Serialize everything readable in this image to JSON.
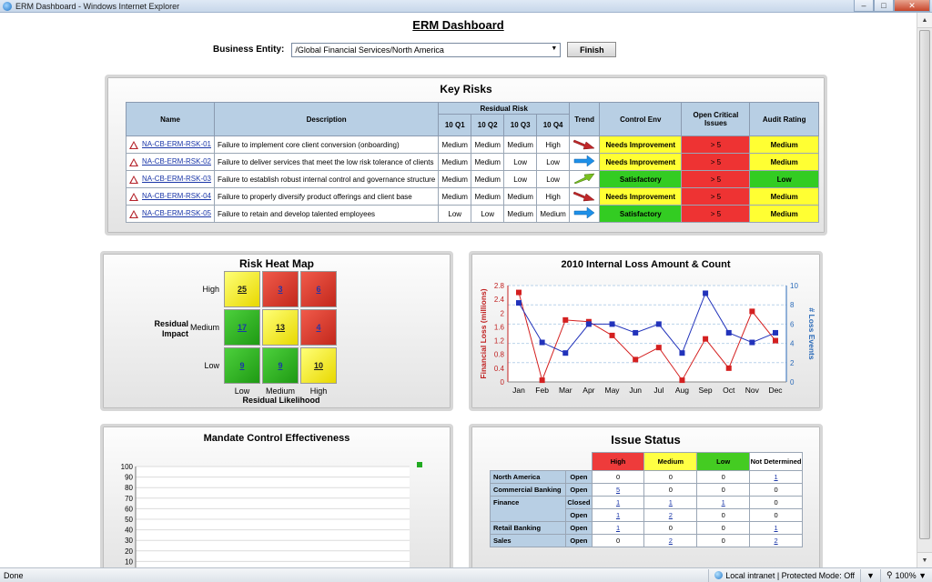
{
  "window": {
    "title": "ERM Dashboard - Windows Internet Explorer"
  },
  "header": {
    "title": "ERM Dashboard",
    "entity_label": "Business Entity:",
    "entity_value": "/Global Financial Services/North America",
    "finish_label": "Finish"
  },
  "key_risks": {
    "title": "Key Risks",
    "columns": {
      "name": "Name",
      "description": "Description",
      "residual_risk": "Residual Risk",
      "q1": "10 Q1",
      "q2": "10 Q2",
      "q3": "10 Q3",
      "q4": "10 Q4",
      "trend": "Trend",
      "control_env": "Control Env",
      "open_issues": "Open Critical Issues",
      "audit": "Audit Rating"
    },
    "rows": [
      {
        "id": "NA-CB-ERM-RSK-01",
        "desc": "Failure to implement core client conversion (onboarding)",
        "q1": "Medium",
        "q2": "Medium",
        "q3": "Medium",
        "q4": "High",
        "trend": "down-red",
        "control": "Needs Improvement",
        "control_color": "yellow",
        "issues": "> 5",
        "audit": "Medium",
        "audit_color": "yellow"
      },
      {
        "id": "NA-CB-ERM-RSK-02",
        "desc": "Failure to deliver services that meet the low risk tolerance of clients",
        "q1": "Medium",
        "q2": "Medium",
        "q3": "Low",
        "q4": "Low",
        "trend": "right-blue",
        "control": "Needs Improvement",
        "control_color": "yellow",
        "issues": "> 5",
        "audit": "Medium",
        "audit_color": "yellow"
      },
      {
        "id": "NA-CB-ERM-RSK-03",
        "desc": "Failure to establish robust internal control and governance structure",
        "q1": "Medium",
        "q2": "Medium",
        "q3": "Low",
        "q4": "Low",
        "trend": "up-green",
        "control": "Satisfactory",
        "control_color": "green",
        "issues": "> 5",
        "audit": "Low",
        "audit_color": "green"
      },
      {
        "id": "NA-CB-ERM-RSK-04",
        "desc": "Failure to properly diversify product offerings and client base",
        "q1": "Medium",
        "q2": "Medium",
        "q3": "Medium",
        "q4": "High",
        "trend": "down-red",
        "control": "Needs Improvement",
        "control_color": "yellow",
        "issues": "> 5",
        "audit": "Medium",
        "audit_color": "yellow"
      },
      {
        "id": "NA-CB-ERM-RSK-05",
        "desc": "Failure to retain and develop talented employees",
        "q1": "Low",
        "q2": "Low",
        "q3": "Medium",
        "q4": "Medium",
        "trend": "right-blue",
        "control": "Satisfactory",
        "control_color": "green",
        "issues": "> 5",
        "audit": "Medium",
        "audit_color": "yellow"
      }
    ]
  },
  "heat_map": {
    "title": "Risk Heat Map",
    "y_title": "Residual\nImpact",
    "x_title": "Residual Likelihood",
    "y_labels": [
      "High",
      "Medium",
      "Low"
    ],
    "x_labels": [
      "Low",
      "Medium",
      "High"
    ],
    "cells": [
      [
        {
          "v": "25",
          "c": "yellow"
        },
        {
          "v": "3",
          "c": "red"
        },
        {
          "v": "6",
          "c": "red"
        }
      ],
      [
        {
          "v": "17",
          "c": "green"
        },
        {
          "v": "13",
          "c": "yellow"
        },
        {
          "v": "4",
          "c": "red"
        }
      ],
      [
        {
          "v": "9",
          "c": "green"
        },
        {
          "v": "9",
          "c": "green"
        },
        {
          "v": "10",
          "c": "yellow"
        }
      ]
    ]
  },
  "chart_data": [
    {
      "type": "line",
      "title": "2010 Internal Loss Amount & Count",
      "categories": [
        "Jan",
        "Feb",
        "Mar",
        "Apr",
        "May",
        "Jun",
        "Jul",
        "Aug",
        "Sep",
        "Oct",
        "Nov",
        "Dec"
      ],
      "ylabel": "Financial Loss (millions)",
      "y2label": "# Loss Events",
      "ylim": [
        0,
        2.8
      ],
      "y2lim": [
        0,
        10
      ],
      "yticks": [
        "0",
        "0.4",
        "0.8",
        "1.2",
        "1.6",
        "2",
        "2.4",
        "2.8"
      ],
      "y2ticks": [
        "0",
        "2",
        "4",
        "6",
        "8",
        "10"
      ],
      "series": [
        {
          "axis": "left",
          "color": "#d42020",
          "values": [
            2.6,
            0.05,
            1.8,
            1.75,
            1.35,
            0.65,
            1.0,
            0.05,
            1.25,
            0.4,
            2.05,
            1.2
          ]
        },
        {
          "axis": "right",
          "color": "#2233bb",
          "values": [
            8.2,
            4.1,
            3.0,
            6.0,
            6.0,
            5.1,
            6.0,
            3.0,
            9.2,
            5.1,
            4.1,
            5.1
          ]
        }
      ]
    },
    {
      "type": "bar",
      "title": "Mandate Control Effectiveness",
      "ylim": [
        0,
        100
      ],
      "yticks": [
        "0",
        "10",
        "20",
        "30",
        "40",
        "50",
        "60",
        "70",
        "80",
        "90",
        "100"
      ],
      "legend_color": "#22aa22"
    }
  ],
  "issue_status": {
    "title": "Issue Status",
    "levels": [
      {
        "label": "High",
        "color": "#ee3b3b"
      },
      {
        "label": "Medium",
        "color": "#ffff44"
      },
      {
        "label": "Low",
        "color": "#44cc22"
      },
      {
        "label": "Not Determined",
        "color": "#ffffff"
      }
    ],
    "rows": [
      {
        "entity": "North America",
        "status": "Open",
        "vals": [
          "0",
          "0",
          "0",
          "1"
        ],
        "links": [
          false,
          false,
          false,
          true
        ],
        "span": 1
      },
      {
        "entity": "Commercial Banking",
        "status": "Open",
        "vals": [
          "5",
          "0",
          "0",
          "0"
        ],
        "links": [
          true,
          false,
          false,
          false
        ],
        "span": 1
      },
      {
        "entity": "Finance",
        "status": "Closed",
        "vals": [
          "1",
          "1",
          "1",
          "0"
        ],
        "links": [
          true,
          true,
          true,
          false
        ],
        "span": 2
      },
      {
        "entity": "",
        "status": "Open",
        "vals": [
          "1",
          "2",
          "0",
          "0"
        ],
        "links": [
          true,
          true,
          false,
          false
        ],
        "span": 0
      },
      {
        "entity": "Retail Banking",
        "status": "Open",
        "vals": [
          "1",
          "0",
          "0",
          "1"
        ],
        "links": [
          true,
          false,
          false,
          true
        ],
        "span": 1
      },
      {
        "entity": "Sales",
        "status": "Open",
        "vals": [
          "0",
          "2",
          "0",
          "2"
        ],
        "links": [
          false,
          true,
          false,
          true
        ],
        "span": 1
      }
    ]
  },
  "status_bar": {
    "left": "Done",
    "zone": "Local intranet | Protected Mode: Off",
    "zoom": "100%"
  }
}
